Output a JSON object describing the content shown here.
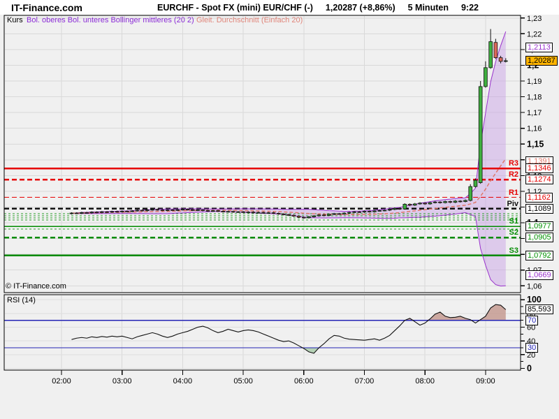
{
  "header": {
    "brand": "IT-Finance.com",
    "title": "EURCHF - Spot FX (mini) EUR/CHF (-)",
    "price_change": "1,20287 (+8,86%)",
    "interval": "5 Minuten",
    "time": "9:22"
  },
  "legend": {
    "kurs": "Kurs",
    "bollinger": "Bol. oberes Bol. unteres Bollinger mittleres (20 2)",
    "ma": "Gleit. Durchschnitt (Einfach 20)"
  },
  "copyright": "© IT-Finance.com",
  "rsi_title": "RSI (14)",
  "colors": {
    "grid": "#d9d9d9",
    "band_line": "#9932cc",
    "band_fill": "#c9a3e6",
    "ma_salmon": "#e0776a",
    "pivot_red": "#e60000",
    "pivot_green": "#008b00",
    "piv_black": "#111111",
    "minor_green": "#2da02d",
    "candle_up": "#3faf3f",
    "candle_down": "#dd6a5a",
    "candle_stroke": "#111111",
    "rsi_line": "#111111",
    "rsi_level_blue": "#2323b5",
    "overbought_fill": "#c09086",
    "oversold_fill": "#9cc49c",
    "accent_orange": "#ffb400"
  },
  "chart_data": {
    "type": "candlestick",
    "title": "EURCHF - Spot FX (mini) EUR/CHF (-)",
    "interval": "5 Minuten",
    "x_axis": {
      "labels": [
        "02:00",
        "03:00",
        "04:00",
        "05:00",
        "06:00",
        "07:00",
        "08:00",
        "09:00"
      ],
      "start_time": "02:10",
      "step_minutes": 5
    },
    "price_axis": {
      "range_low": 1.0557,
      "range_high": 1.229,
      "ticks": [
        {
          "value": 1.23,
          "label": "1,23",
          "bold": false
        },
        {
          "value": 1.22,
          "label": "1,22",
          "bold": false
        },
        {
          "value": 1.21,
          "label": "1,21",
          "bold": false
        },
        {
          "value": 1.2,
          "label": "1,2",
          "bold": true
        },
        {
          "value": 1.19,
          "label": "1,19",
          "bold": false
        },
        {
          "value": 1.18,
          "label": "1,18",
          "bold": false
        },
        {
          "value": 1.17,
          "label": "1,17",
          "bold": false
        },
        {
          "value": 1.16,
          "label": "1,16",
          "bold": false
        },
        {
          "value": 1.15,
          "label": "1,15",
          "bold": true
        },
        {
          "value": 1.14,
          "label": "1,14",
          "bold": false
        },
        {
          "value": 1.13,
          "label": "1,13",
          "bold": false
        },
        {
          "value": 1.12,
          "label": "1,12",
          "bold": false
        },
        {
          "value": 1.11,
          "label": "1,11",
          "bold": false
        },
        {
          "value": 1.1,
          "label": "1,1",
          "bold": true
        },
        {
          "value": 1.09,
          "label": "1,09",
          "bold": false
        },
        {
          "value": 1.08,
          "label": "1,08",
          "bold": false
        },
        {
          "value": 1.07,
          "label": "1,07",
          "bold": false
        },
        {
          "value": 1.06,
          "label": "1,06",
          "bold": false
        }
      ]
    },
    "pivots": [
      {
        "name": "R3",
        "label": "1,1346",
        "value": 1.1346,
        "style": "solid",
        "width": 2.5,
        "color": "red"
      },
      {
        "name": "R2",
        "label": "1,1274",
        "value": 1.1274,
        "style": "dash",
        "width": 2.5,
        "color": "red"
      },
      {
        "name": "R1",
        "label": "1,1162",
        "value": 1.1162,
        "style": "dash",
        "width": 1.2,
        "color": "red"
      },
      {
        "name": "Piv",
        "label": "1,1089",
        "value": 1.1089,
        "style": "dash",
        "width": 2.5,
        "color": "black"
      },
      {
        "name": "S1",
        "label": "1,0977",
        "value": 1.0977,
        "style": "solid",
        "width": 1.5,
        "color": "green"
      },
      {
        "name": "S2",
        "label": "1,0905",
        "value": 1.0905,
        "style": "dash",
        "width": 2.5,
        "color": "green"
      },
      {
        "name": "S3",
        "label": "1,0792",
        "value": 1.0792,
        "style": "solid",
        "width": 2.5,
        "color": "green"
      }
    ],
    "minor_levels": [
      1.1058,
      1.1045,
      1.1031,
      1.1018,
      1.096
    ],
    "bollinger": {
      "period": 20,
      "stdev": 2
    },
    "ma": {
      "period": 20,
      "type": "Einfach"
    },
    "markers": {
      "boll_upper": {
        "label": "1,2113",
        "value": 1.2113
      },
      "last_price": {
        "label": "1,20287",
        "value": 1.20287
      },
      "ma": {
        "label": "1,1391",
        "value": 1.1391
      },
      "boll_lower": {
        "label": "1,0669",
        "value": 1.0669
      },
      "rsi_last": {
        "label": "85,593",
        "value": 85.593
      }
    },
    "candles": [
      [
        1.1058,
        1.1067,
        1.1053,
        1.1062
      ],
      [
        1.1062,
        1.1067,
        1.1055,
        1.106
      ],
      [
        1.106,
        1.107,
        1.1055,
        1.1065
      ],
      [
        1.1065,
        1.107,
        1.1058,
        1.1063
      ],
      [
        1.1063,
        1.1073,
        1.1058,
        1.1068
      ],
      [
        1.1068,
        1.1073,
        1.1061,
        1.1066
      ],
      [
        1.1066,
        1.1075,
        1.1061,
        1.107
      ],
      [
        1.107,
        1.1075,
        1.1063,
        1.1068
      ],
      [
        1.1068,
        1.1077,
        1.1063,
        1.1072
      ],
      [
        1.1072,
        1.1077,
        1.1065,
        1.107
      ],
      [
        1.107,
        1.1079,
        1.1065,
        1.1074
      ],
      [
        1.1074,
        1.1079,
        1.1067,
        1.1072
      ],
      [
        1.1072,
        1.1081,
        1.1067,
        1.1076
      ],
      [
        1.1076,
        1.1085,
        1.1071,
        1.108
      ],
      [
        1.108,
        1.1085,
        1.1072,
        1.1077
      ],
      [
        1.1077,
        1.1087,
        1.1072,
        1.1082
      ],
      [
        1.1082,
        1.109,
        1.1077,
        1.1085
      ],
      [
        1.1085,
        1.109,
        1.1077,
        1.1082
      ],
      [
        1.1082,
        1.1087,
        1.1074,
        1.1079
      ],
      [
        1.1079,
        1.1087,
        1.1074,
        1.1082
      ],
      [
        1.1082,
        1.1087,
        1.1075,
        1.108
      ],
      [
        1.108,
        1.1088,
        1.1075,
        1.1083
      ],
      [
        1.1083,
        1.1091,
        1.1078,
        1.1086
      ],
      [
        1.1086,
        1.1091,
        1.1078,
        1.1083
      ],
      [
        1.1083,
        1.1088,
        1.1075,
        1.108
      ],
      [
        1.108,
        1.1087,
        1.1075,
        1.1082
      ],
      [
        1.1082,
        1.1087,
        1.1073,
        1.1078
      ],
      [
        1.1078,
        1.1083,
        1.107,
        1.1075
      ],
      [
        1.1075,
        1.1082,
        1.107,
        1.1077
      ],
      [
        1.1077,
        1.1082,
        1.1068,
        1.1073
      ],
      [
        1.1073,
        1.1078,
        1.1065,
        1.107
      ],
      [
        1.107,
        1.1077,
        1.1065,
        1.1072
      ],
      [
        1.1072,
        1.1077,
        1.1063,
        1.1068
      ],
      [
        1.1068,
        1.1075,
        1.1063,
        1.107
      ],
      [
        1.107,
        1.1075,
        1.1061,
        1.1066
      ],
      [
        1.1066,
        1.1073,
        1.1061,
        1.1068
      ],
      [
        1.1068,
        1.1073,
        1.1059,
        1.1064
      ],
      [
        1.1064,
        1.1071,
        1.1059,
        1.1066
      ],
      [
        1.1066,
        1.1071,
        1.1057,
        1.1062
      ],
      [
        1.1062,
        1.1069,
        1.1057,
        1.1064
      ],
      [
        1.1064,
        1.1069,
        1.1055,
        1.106
      ],
      [
        1.106,
        1.1065,
        1.1051,
        1.1056
      ],
      [
        1.1056,
        1.1061,
        1.1047,
        1.1052
      ],
      [
        1.1052,
        1.1057,
        1.1043,
        1.1048
      ],
      [
        1.1048,
        1.1053,
        1.1037,
        1.1042
      ],
      [
        1.1042,
        1.1047,
        1.103,
        1.1035
      ],
      [
        1.1035,
        1.104,
        1.1026,
        1.1032
      ],
      [
        1.1032,
        1.1043,
        1.1027,
        1.1038
      ],
      [
        1.1038,
        1.1049,
        1.1033,
        1.1044
      ],
      [
        1.1044,
        1.1055,
        1.1039,
        1.105
      ],
      [
        1.105,
        1.1055,
        1.1042,
        1.1047
      ],
      [
        1.1047,
        1.1059,
        1.1042,
        1.1054
      ],
      [
        1.1054,
        1.1063,
        1.1049,
        1.1058
      ],
      [
        1.1058,
        1.1063,
        1.1051,
        1.1056
      ],
      [
        1.1056,
        1.1067,
        1.1051,
        1.1062
      ],
      [
        1.1062,
        1.1071,
        1.1057,
        1.1066
      ],
      [
        1.1066,
        1.1075,
        1.1061,
        1.107
      ],
      [
        1.107,
        1.1075,
        1.1063,
        1.1068
      ],
      [
        1.1068,
        1.1078,
        1.1063,
        1.1073
      ],
      [
        1.1073,
        1.1078,
        1.1065,
        1.107
      ],
      [
        1.107,
        1.1081,
        1.1065,
        1.1076
      ],
      [
        1.1076,
        1.1083,
        1.1071,
        1.1078
      ],
      [
        1.1078,
        1.1085,
        1.1073,
        1.108
      ],
      [
        1.108,
        1.109,
        1.1075,
        1.1085
      ],
      [
        1.1085,
        1.1097,
        1.108,
        1.1092
      ],
      [
        1.1092,
        1.1097,
        1.1083,
        1.1088
      ],
      [
        1.1088,
        1.1124,
        1.1084,
        1.1118
      ],
      [
        1.1118,
        1.1123,
        1.1106,
        1.1112
      ],
      [
        1.1112,
        1.1126,
        1.1107,
        1.112
      ],
      [
        1.112,
        1.1131,
        1.1115,
        1.1125
      ],
      [
        1.1125,
        1.113,
        1.1114,
        1.112
      ],
      [
        1.112,
        1.1134,
        1.1115,
        1.1128
      ],
      [
        1.1128,
        1.1138,
        1.1123,
        1.1132
      ],
      [
        1.1132,
        1.1137,
        1.1122,
        1.1128
      ],
      [
        1.1128,
        1.1141,
        1.1123,
        1.1135
      ],
      [
        1.1135,
        1.114,
        1.1124,
        1.113
      ],
      [
        1.113,
        1.1144,
        1.1125,
        1.1138
      ],
      [
        1.1138,
        1.1143,
        1.1129,
        1.1135
      ],
      [
        1.1135,
        1.1148,
        1.113,
        1.1142
      ],
      [
        1.1142,
        1.1245,
        1.1136,
        1.123
      ],
      [
        1.123,
        1.1282,
        1.1224,
        1.127
      ],
      [
        1.1255,
        1.19,
        1.1248,
        1.1865
      ],
      [
        1.1865,
        1.2025,
        1.1858,
        1.1985
      ],
      [
        1.1985,
        1.223,
        1.1978,
        1.215
      ],
      [
        1.2145,
        1.2168,
        1.204,
        1.2048
      ],
      [
        1.2048,
        1.206,
        1.2012,
        1.2025
      ],
      [
        1.2025,
        1.2045,
        1.2018,
        1.20287
      ]
    ],
    "rsi": {
      "period": 14,
      "overbought": 70,
      "oversold": 30,
      "overbought_label": "70",
      "oversold_label": "30",
      "values": [
        42,
        44,
        45,
        44,
        46,
        45,
        46.5,
        45.5,
        47,
        46,
        47,
        45,
        43,
        46,
        48,
        50,
        52,
        50,
        47,
        45,
        47,
        50,
        52,
        54,
        57,
        60,
        61.5,
        59,
        55,
        52,
        54,
        57,
        55,
        53,
        55,
        56,
        55,
        53,
        50,
        47,
        44,
        41,
        39,
        40,
        37,
        33,
        29,
        24,
        22,
        30,
        36,
        43,
        48,
        47,
        44,
        42.5,
        42,
        41.5,
        41,
        42,
        43,
        41,
        44,
        48,
        55,
        62,
        70,
        73,
        68,
        63,
        66,
        72,
        79,
        82,
        76,
        74,
        74.5,
        76,
        73,
        71,
        66,
        71,
        76,
        88,
        93,
        92,
        85.593
      ],
      "axis_ticks": [
        {
          "value": 100,
          "label": "100",
          "bold": true
        },
        {
          "value": 80,
          "label": "80",
          "bold": false
        },
        {
          "value": 60,
          "label": "60",
          "bold": false
        },
        {
          "value": 40,
          "label": "40",
          "bold": false
        },
        {
          "value": 20,
          "label": "20",
          "bold": false
        },
        {
          "value": 0,
          "label": "0",
          "bold": true
        }
      ]
    }
  }
}
